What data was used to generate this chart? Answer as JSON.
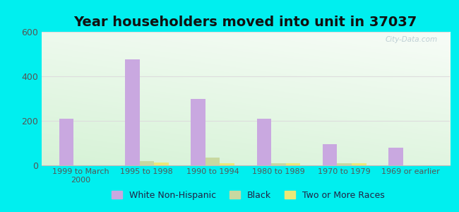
{
  "title": "Year householders moved into unit in 37037",
  "categories": [
    "1999 to March\n2000",
    "1995 to 1998",
    "1990 to 1994",
    "1980 to 1989",
    "1970 to 1979",
    "1969 or earlier"
  ],
  "series": {
    "White Non-Hispanic": [
      210,
      475,
      300,
      210,
      95,
      80
    ],
    "Black": [
      0,
      20,
      35,
      10,
      10,
      0
    ],
    "Two or More Races": [
      0,
      12,
      8,
      8,
      8,
      0
    ]
  },
  "colors": {
    "White Non-Hispanic": "#c9a8e0",
    "Black": "#c8d8a0",
    "Two or More Races": "#ece878"
  },
  "ylim": [
    0,
    600
  ],
  "yticks": [
    0,
    200,
    400,
    600
  ],
  "background_outer": "#00EFEF",
  "watermark": "City-Data.com",
  "bar_width": 0.22,
  "title_fontsize": 14,
  "legend_fontsize": 9
}
